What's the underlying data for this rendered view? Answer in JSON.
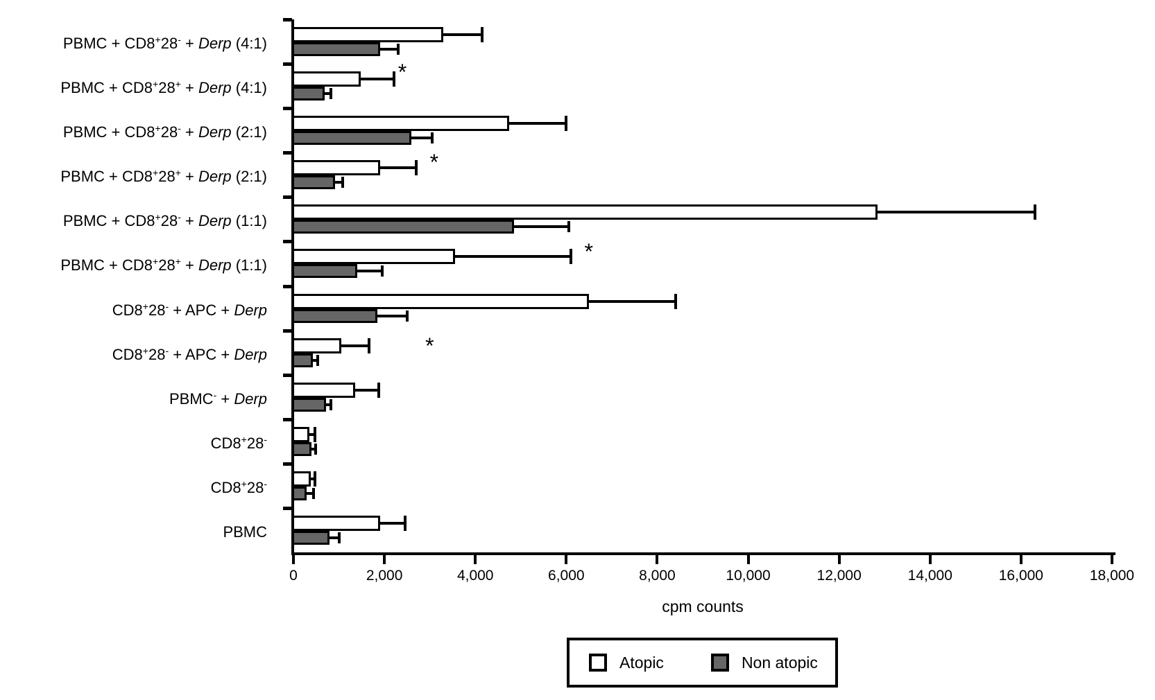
{
  "figure": {
    "background": "#ffffff"
  },
  "chart_data": {
    "type": "bar",
    "orientation": "horizontal",
    "title": "",
    "xlabel": "cpm counts",
    "grid": false,
    "x_axis": {
      "min": 0,
      "max": 18000,
      "tick_step": 2000,
      "tick_labels": [
        "0",
        "2,000",
        "4,000",
        "6,000",
        "8,000",
        "10,000",
        "12,000",
        "14,000",
        "16,000",
        "18,000"
      ]
    },
    "categories": [
      {
        "text": "PBMC + CD8⁺28⁻ + Derp (4:1)",
        "segments": [
          {
            "t": "PBMC + CD8"
          },
          {
            "t": "+",
            "sup": true
          },
          {
            "t": "28"
          },
          {
            "t": "-",
            "sup": true
          },
          {
            "t": " + "
          },
          {
            "t": "Derp",
            "italic": true
          },
          {
            "t": " (4:1)"
          }
        ]
      },
      {
        "text": "PBMC + CD8⁺28⁺ + Derp (4:1)",
        "segments": [
          {
            "t": "PBMC + CD8"
          },
          {
            "t": "+",
            "sup": true
          },
          {
            "t": "28"
          },
          {
            "t": "+",
            "sup": true
          },
          {
            "t": " + "
          },
          {
            "t": "Derp",
            "italic": true
          },
          {
            "t": " (4:1)"
          }
        ]
      },
      {
        "text": "PBMC + CD8⁺28⁻ + Derp (2:1)",
        "segments": [
          {
            "t": "PBMC + CD8"
          },
          {
            "t": "+",
            "sup": true
          },
          {
            "t": "28"
          },
          {
            "t": "-",
            "sup": true
          },
          {
            "t": " + "
          },
          {
            "t": "Derp",
            "italic": true
          },
          {
            "t": " (2:1)"
          }
        ]
      },
      {
        "text": "PBMC + CD8⁺28⁺ + Derp (2:1)",
        "segments": [
          {
            "t": "PBMC + CD8"
          },
          {
            "t": "+",
            "sup": true
          },
          {
            "t": "28"
          },
          {
            "t": "+",
            "sup": true
          },
          {
            "t": " + "
          },
          {
            "t": "Derp",
            "italic": true
          },
          {
            "t": " (2:1)"
          }
        ]
      },
      {
        "text": "PBMC + CD8⁺28⁻ + Derp (1:1)",
        "segments": [
          {
            "t": "PBMC + CD8"
          },
          {
            "t": "+",
            "sup": true
          },
          {
            "t": "28"
          },
          {
            "t": "-",
            "sup": true
          },
          {
            "t": " + "
          },
          {
            "t": "Derp",
            "italic": true
          },
          {
            "t": " (1:1)"
          }
        ]
      },
      {
        "text": "PBMC + CD8⁺28⁺ + Derp (1:1)",
        "segments": [
          {
            "t": "PBMC + CD8"
          },
          {
            "t": "+",
            "sup": true
          },
          {
            "t": "28"
          },
          {
            "t": "+",
            "sup": true
          },
          {
            "t": " + "
          },
          {
            "t": "Derp",
            "italic": true
          },
          {
            "t": " (1:1)"
          }
        ]
      },
      {
        "text": "CD8⁺28⁻ + APC + Derp",
        "segments": [
          {
            "t": "CD8"
          },
          {
            "t": "+",
            "sup": true
          },
          {
            "t": "28"
          },
          {
            "t": "-",
            "sup": true
          },
          {
            "t": " + APC + "
          },
          {
            "t": "Derp",
            "italic": true
          }
        ]
      },
      {
        "text": "CD8⁺28⁻ + APC + Derp",
        "segments": [
          {
            "t": "CD8"
          },
          {
            "t": "+",
            "sup": true
          },
          {
            "t": "28"
          },
          {
            "t": "-",
            "sup": true
          },
          {
            "t": " + APC + "
          },
          {
            "t": "Derp",
            "italic": true
          }
        ]
      },
      {
        "text": "PBMC⁻ + Derp",
        "segments": [
          {
            "t": "PBMC"
          },
          {
            "t": "-",
            "sup": true
          },
          {
            "t": " + "
          },
          {
            "t": "Derp",
            "italic": true
          }
        ]
      },
      {
        "text": "CD8⁺28⁻",
        "segments": [
          {
            "t": "CD8"
          },
          {
            "t": "+",
            "sup": true
          },
          {
            "t": "28"
          },
          {
            "t": "-",
            "sup": true
          }
        ]
      },
      {
        "text": "CD8⁺28⁻",
        "segments": [
          {
            "t": "CD8"
          },
          {
            "t": "+",
            "sup": true
          },
          {
            "t": "28"
          },
          {
            "t": "-",
            "sup": true
          }
        ]
      },
      {
        "text": "PBMC",
        "segments": [
          {
            "t": "PBMC"
          }
        ]
      }
    ],
    "series": [
      {
        "name": "Atopic",
        "fill": "#ffffff",
        "border": "#000000",
        "values": [
          3300,
          1480,
          4750,
          1900,
          12850,
          3550,
          6500,
          1050,
          1350,
          350,
          375,
          1900
        ],
        "error_upper": [
          4150,
          2210,
          6000,
          2700,
          16300,
          6100,
          8400,
          1660,
          1880,
          475,
          475,
          2450
        ]
      },
      {
        "name": "Non atopic",
        "fill": "#666666",
        "border": "#000000",
        "values": [
          1900,
          680,
          2600,
          920,
          4850,
          1400,
          1850,
          420,
          710,
          390,
          290,
          800
        ],
        "error_upper": [
          2300,
          820,
          3050,
          1080,
          6050,
          1950,
          2500,
          540,
          830,
          490,
          440,
          1000
        ]
      }
    ],
    "annotations": [
      {
        "row": 1,
        "symbol": "*",
        "x": 2300,
        "dy": 0
      },
      {
        "row": 3,
        "symbol": "*",
        "x": 3000,
        "dy": 2
      },
      {
        "row": 5,
        "symbol": "*",
        "x": 6400,
        "dy": 3
      },
      {
        "row": 7,
        "symbol": "*",
        "x": 2900,
        "dy": 10
      }
    ],
    "legend": {
      "position": "bottom",
      "items": [
        {
          "label": "Atopic",
          "fill": "#ffffff"
        },
        {
          "label": "Non atopic",
          "fill": "#666666"
        }
      ]
    }
  }
}
